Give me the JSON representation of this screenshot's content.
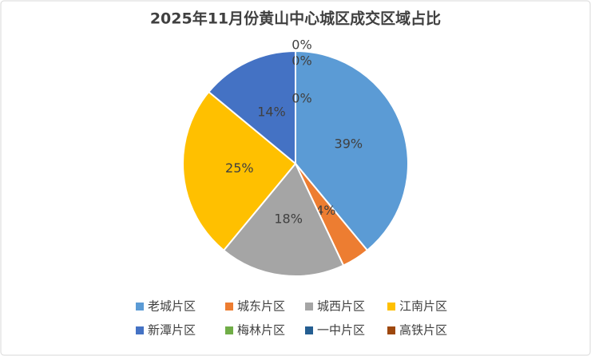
{
  "chart_data": {
    "type": "pie",
    "title": "2025年11月份黄山中心城区成交区域占比",
    "categories": [
      "老城片区",
      "城东片区",
      "城西片区",
      "江南片区",
      "新潭片区",
      "梅林片区",
      "一中片区",
      "高铁片区"
    ],
    "values": [
      39,
      4,
      18,
      25,
      14,
      0,
      0,
      0
    ],
    "value_labels": [
      "39%",
      "4%",
      "18%",
      "25%",
      "14%",
      "0%",
      "0%",
      "0%"
    ],
    "colors": [
      "#5b9bd5",
      "#ed7d31",
      "#a5a5a5",
      "#ffc000",
      "#4472c4",
      "#70ad47",
      "#255e91",
      "#9e480e"
    ],
    "legend": "bottom"
  }
}
